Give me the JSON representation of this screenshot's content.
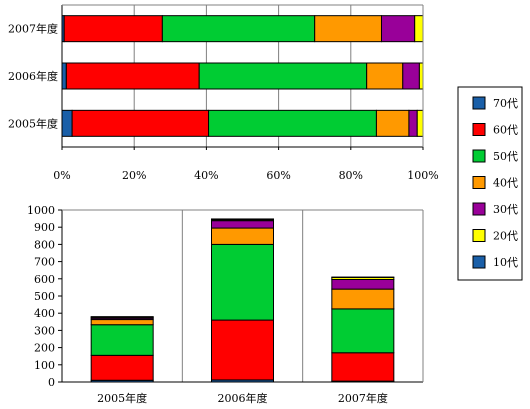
{
  "chart_data": [
    {
      "type": "bar",
      "orientation": "horizontal",
      "stacking": "percent",
      "categories": [
        "2007年度",
        "2006年度",
        "2005年度"
      ],
      "series": [
        {
          "name": "10代",
          "color": "#1a5fa8",
          "values": [
            0.6,
            1.2,
            2.8
          ]
        },
        {
          "name": "60代",
          "color": "#ff0000",
          "values": [
            27.2,
            36.8,
            37.8
          ]
        },
        {
          "name": "50代",
          "color": "#00cc33",
          "values": [
            42.2,
            46.4,
            46.5
          ]
        },
        {
          "name": "40代",
          "color": "#ff9900",
          "values": [
            18.5,
            10.0,
            9.0
          ]
        },
        {
          "name": "30代",
          "color": "#990099",
          "values": [
            9.2,
            4.6,
            2.3
          ]
        },
        {
          "name": "20代",
          "color": "#ffff00",
          "values": [
            2.3,
            1.0,
            1.6
          ]
        }
      ],
      "xlim": [
        0,
        100
      ],
      "xticks": [
        "0%",
        "20%",
        "40%",
        "60%",
        "80%",
        "100%"
      ],
      "grid": true
    },
    {
      "type": "bar",
      "orientation": "vertical",
      "stacking": "stacked",
      "categories": [
        "2005年度",
        "2006年度",
        "2007年度"
      ],
      "series": [
        {
          "name": "10代",
          "color": "#1a5fa8",
          "values": [
            10,
            12,
            5
          ]
        },
        {
          "name": "60代",
          "color": "#ff0000",
          "values": [
            145,
            348,
            165
          ]
        },
        {
          "name": "50代",
          "color": "#00cc33",
          "values": [
            178,
            440,
            255
          ]
        },
        {
          "name": "40代",
          "color": "#ff9900",
          "values": [
            30,
            95,
            115
          ]
        },
        {
          "name": "30代",
          "color": "#990099",
          "values": [
            8,
            43,
            56
          ]
        },
        {
          "name": "20代",
          "color": "#ffff00",
          "values": [
            6,
            6,
            12
          ]
        },
        {
          "name": "70代",
          "color": "#1a5fa8",
          "values": [
            3,
            4,
            2
          ]
        }
      ],
      "ylim": [
        0,
        1000
      ],
      "yticks": [
        0,
        100,
        200,
        300,
        400,
        500,
        600,
        700,
        800,
        900,
        1000
      ],
      "grid": true
    }
  ],
  "legend": {
    "placement": "right",
    "items": [
      {
        "label": "70代",
        "color": "#1a5fa8"
      },
      {
        "label": "60代",
        "color": "#ff0000"
      },
      {
        "label": "50代",
        "color": "#00cc33"
      },
      {
        "label": "40代",
        "color": "#ff9900"
      },
      {
        "label": "30代",
        "color": "#990099"
      },
      {
        "label": "20代",
        "color": "#ffff00"
      },
      {
        "label": "10代",
        "color": "#1a5fa8"
      }
    ]
  }
}
